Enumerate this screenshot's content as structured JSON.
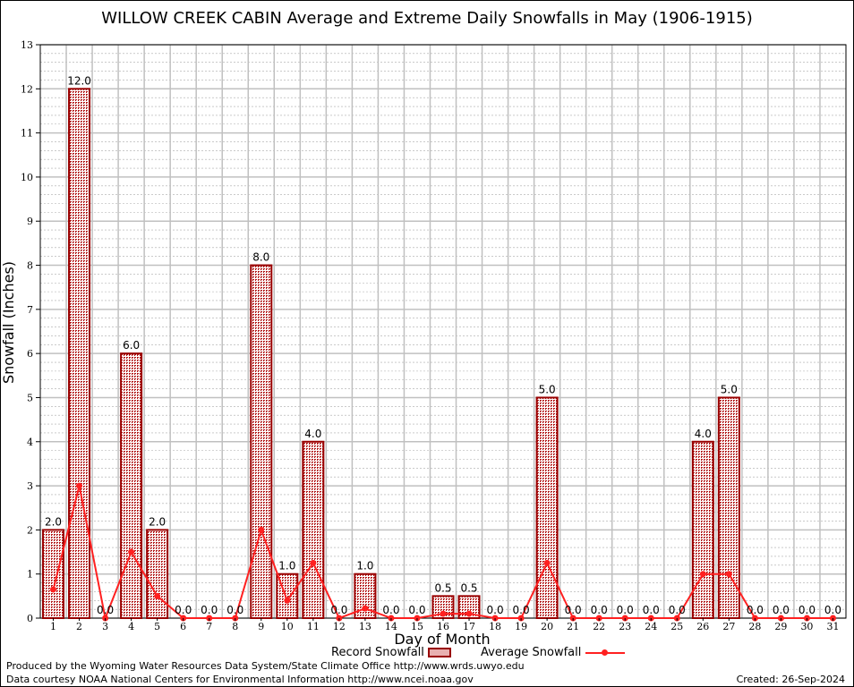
{
  "chart_data": {
    "type": "bar",
    "title": "WILLOW CREEK CABIN Average and Extreme Daily Snowfalls in May (1906-1915)",
    "xlabel": "Day of Month",
    "ylabel": "Snowfall (Inches)",
    "ylim": [
      0,
      13
    ],
    "yticks": [
      "0",
      "1",
      "2",
      "3",
      "4",
      "5",
      "6",
      "7",
      "8",
      "9",
      "10",
      "11",
      "12",
      "13"
    ],
    "categories": [
      "1",
      "2",
      "3",
      "4",
      "5",
      "6",
      "7",
      "8",
      "9",
      "10",
      "11",
      "12",
      "13",
      "14",
      "15",
      "16",
      "17",
      "18",
      "19",
      "20",
      "21",
      "22",
      "23",
      "24",
      "25",
      "26",
      "27",
      "28",
      "29",
      "30",
      "31"
    ],
    "series": [
      {
        "name": "Record Snowfall",
        "type": "bar",
        "color": "#990000",
        "values": [
          2.0,
          12.0,
          0.0,
          6.0,
          2.0,
          0.0,
          0.0,
          0.0,
          8.0,
          1.0,
          4.0,
          0.0,
          1.0,
          0.0,
          0.0,
          0.5,
          0.5,
          0.0,
          0.0,
          5.0,
          0.0,
          0.0,
          0.0,
          0.0,
          0.0,
          4.0,
          5.0,
          0.0,
          0.0,
          0.0,
          0.0
        ],
        "labels": [
          "2.0",
          "12.0",
          "0.0",
          "6.0",
          "2.0",
          "0.0",
          "0.0",
          "0.0",
          "8.0",
          "1.0",
          "4.0",
          "0.0",
          "1.0",
          "0.0",
          "0.0",
          "0.5",
          "0.5",
          "0.0",
          "0.0",
          "5.0",
          "0.0",
          "0.0",
          "0.0",
          "0.0",
          "0.0",
          "4.0",
          "5.0",
          "0.0",
          "0.0",
          "0.0",
          "0.0"
        ]
      },
      {
        "name": "Average Snowfall",
        "type": "line",
        "color": "#ff2020",
        "values": [
          0.65,
          3.0,
          0.0,
          1.5,
          0.5,
          0.0,
          0.0,
          0.0,
          2.0,
          0.4,
          1.25,
          0.0,
          0.22,
          0.0,
          0.0,
          0.1,
          0.1,
          0.0,
          0.0,
          1.25,
          0.0,
          0.0,
          0.0,
          0.0,
          0.0,
          1.0,
          1.0,
          0.0,
          0.0,
          0.0,
          0.0
        ]
      }
    ],
    "grid": true,
    "legend_position": "bottom-center"
  },
  "footer": {
    "produced_by": "Produced by the Wyoming Water Resources Data System/State Climate Office http://www.wrds.uwyo.edu",
    "courtesy": "Data courtesy NOAA National Centers for Environmental Information http://www.ncei.noaa.gov",
    "created": "Created: 26-Sep-2024"
  }
}
